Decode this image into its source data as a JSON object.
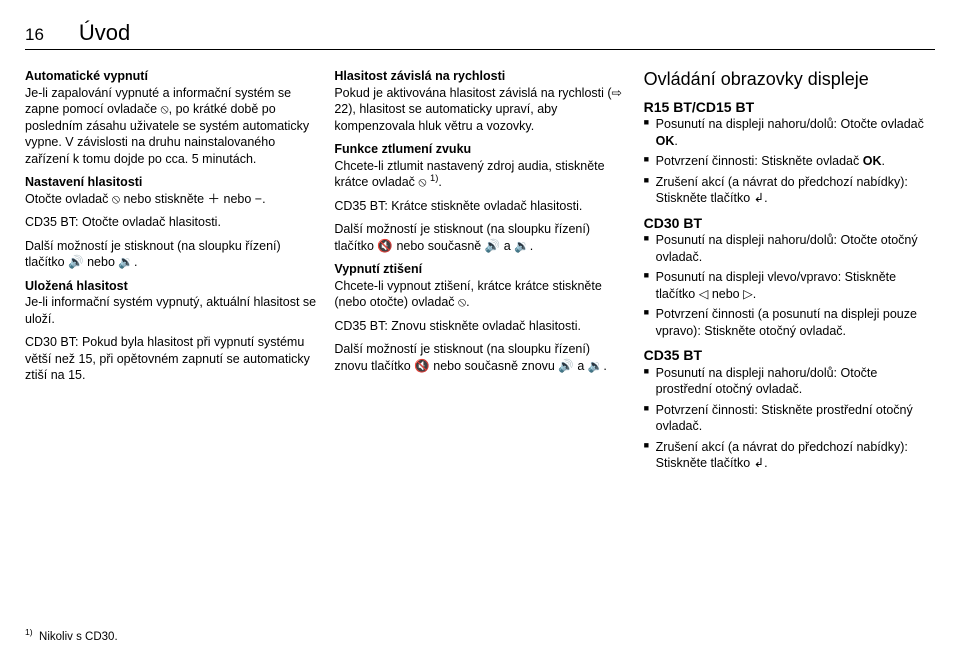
{
  "page": {
    "number": "16",
    "chapter": "Úvod"
  },
  "col1": {
    "h1": "Automatické vypnutí",
    "p1": "Je-li zapalování vypnuté a informační systém se zapne pomocí ovladače ⦸, po krátké době po posledním zásahu uživatele se systém automaticky vypne. V závislosti na druhu nainstalovaného zařízení k tomu dojde po cca. 5 minutách.",
    "h2": "Nastavení hlasitosti",
    "p2a": "Otočte ovladač ⦸ nebo stiskněte ＋ nebo −.",
    "p2b": "CD35 BT: Otočte ovladač hlasitosti.",
    "p2c": "Další možností je stisknout (na sloupku řízení) tlačítko 🔊 nebo 🔉.",
    "h3": "Uložená hlasitost",
    "p3": "Je-li informační systém vypnutý, aktuální hlasitost se uloží.",
    "p4": "CD30 BT: Pokud byla hlasitost při vypnutí systému větší než 15, při opětovném zapnutí se automaticky ztiší na 15."
  },
  "col2": {
    "h1": "Hlasitost závislá na rychlosti",
    "p1": "Pokud je aktivována hlasitost závislá na rychlosti (⇨ 22), hlasitost se automaticky upraví, aby kompenzovala hluk větru a vozovky.",
    "h2": "Funkce ztlumení zvuku",
    "p2a": "Chcete-li ztlumit nastavený zdroj audia, stiskněte krátce ovladač ⦸ ",
    "sup2": "1)",
    "p2a_end": ".",
    "p2b": "CD35 BT: Krátce stiskněte ovladač hlasitosti.",
    "p2c": "Další možností je stisknout (na sloupku řízení) tlačítko 🔇 nebo současně 🔊 a 🔉.",
    "h3": "Vypnutí ztišení",
    "p3a": "Chcete-li vypnout ztišení, krátce krátce stiskněte (nebo otočte) ovladač ⦸.",
    "p3b": "CD35 BT: Znovu stiskněte ovladač hlasitosti.",
    "p3c": "Další možností je stisknout (na sloupku řízení) znovu tlačítko 🔇 nebo současně znovu 🔊 a 🔉."
  },
  "col3": {
    "title": "Ovládání obrazovky displeje",
    "h1": "R15 BT/CD15 BT",
    "l1a1": "Posunutí na displeji nahoru/dolů: Otočte ovladač ",
    "l1a_ok": "OK",
    "l1a2": ".",
    "l1b1": "Potvrzení činnosti: Stiskněte ovladač ",
    "l1b_ok": "OK",
    "l1b2": ".",
    "l1c": "Zrušení akcí (a návrat do předchozí nabídky): Stiskněte tlačítko ↲.",
    "h2": "CD30 BT",
    "l2a": "Posunutí na displeji nahoru/dolů: Otočte otočný ovladač.",
    "l2b": "Posunutí na displeji vlevo/vpravo: Stiskněte tlačítko ◁ nebo ▷.",
    "l2c": "Potvrzení činnosti (a posunutí na displeji pouze vpravo): Stiskněte otočný ovladač.",
    "h3": "CD35 BT",
    "l3a": "Posunutí na displeji nahoru/dolů: Otočte prostřední otočný ovladač.",
    "l3b": "Potvrzení činnosti: Stiskněte prostřední otočný ovladač.",
    "l3c": "Zrušení akcí (a návrat do předchozí nabídky): Stiskněte tlačítko ↲."
  },
  "footnote": {
    "mark": "1)",
    "text": "Nikoliv s CD30."
  }
}
